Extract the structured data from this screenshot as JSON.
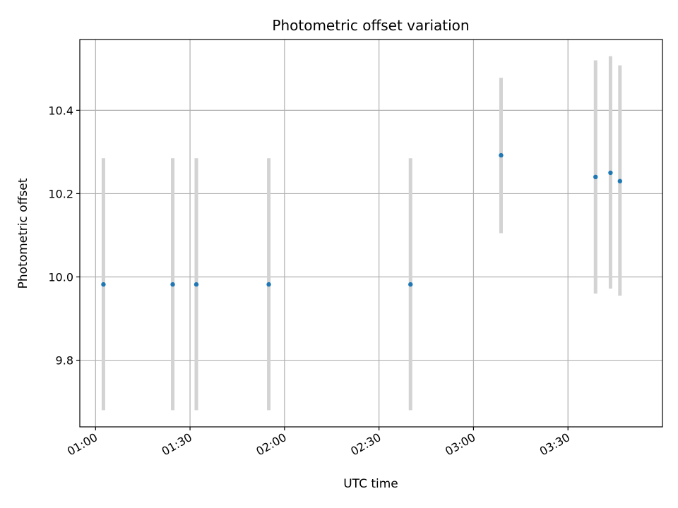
{
  "chart_data": {
    "type": "scatter",
    "title": "Photometric offset variation",
    "xlabel": "UTC time",
    "ylabel": "Photometric offset",
    "x_axis_type": "time",
    "xlim": [
      "00:55",
      "04:00"
    ],
    "ylim": [
      9.64,
      10.57
    ],
    "x_ticks": [
      "01:00",
      "01:30",
      "02:00",
      "02:30",
      "03:00",
      "03:30"
    ],
    "y_ticks": [
      9.8,
      10.0,
      10.2,
      10.4
    ],
    "y_tick_labels": [
      "9.8",
      "10.0",
      "10.2",
      "10.4"
    ],
    "grid": true,
    "marker_color": "#1f77b4",
    "errorbar_color": "#d3d3d3",
    "series": [
      {
        "points": [
          {
            "x": "01:02:30",
            "y": 9.982,
            "ylow": 9.68,
            "yhigh": 10.285
          },
          {
            "x": "01:24:30",
            "y": 9.982,
            "ylow": 9.68,
            "yhigh": 10.285
          },
          {
            "x": "01:32:00",
            "y": 9.982,
            "ylow": 9.68,
            "yhigh": 10.285
          },
          {
            "x": "01:55:00",
            "y": 9.982,
            "ylow": 9.68,
            "yhigh": 10.285
          },
          {
            "x": "02:40:00",
            "y": 9.982,
            "ylow": 9.68,
            "yhigh": 10.285
          },
          {
            "x": "03:08:45",
            "y": 10.292,
            "ylow": 10.105,
            "yhigh": 10.478
          },
          {
            "x": "03:38:45",
            "y": 10.24,
            "ylow": 9.96,
            "yhigh": 10.52
          },
          {
            "x": "03:43:30",
            "y": 10.25,
            "ylow": 9.972,
            "yhigh": 10.53
          },
          {
            "x": "03:46:30",
            "y": 10.23,
            "ylow": 9.955,
            "yhigh": 10.508
          }
        ]
      }
    ]
  }
}
